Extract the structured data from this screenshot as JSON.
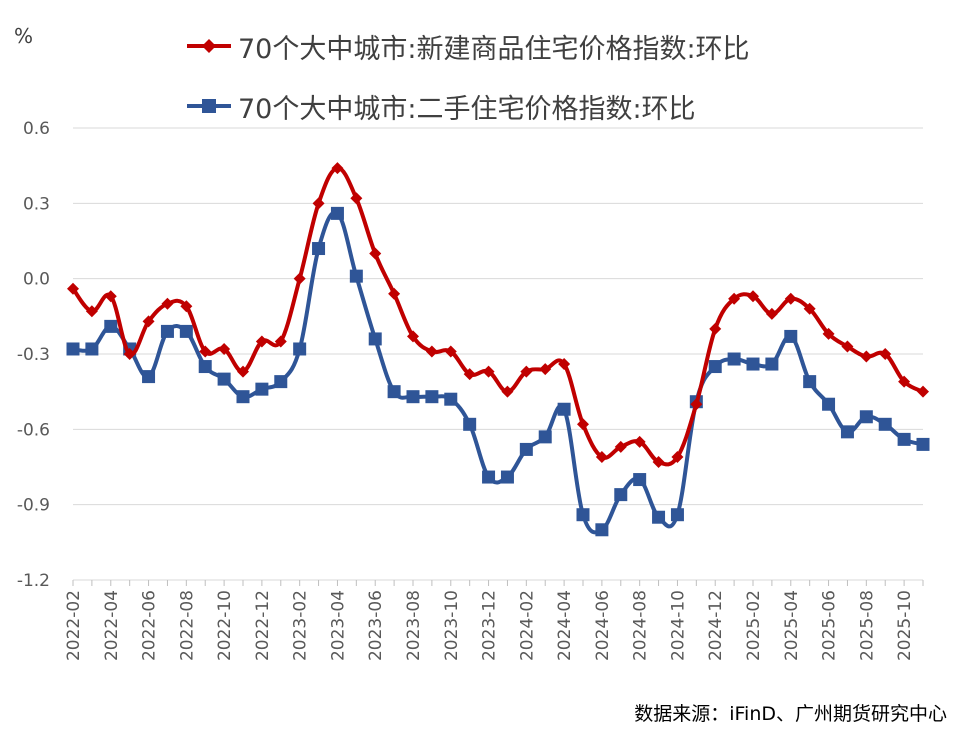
{
  "unit_label": "%",
  "source_text": "数据来源：iFinD、广州期货研究中心",
  "chart_data": {
    "type": "line",
    "title": "",
    "xlabel": "",
    "ylabel": "%",
    "ylim": [
      -1.2,
      0.6
    ],
    "yticks": [
      0.6,
      0.3,
      0.0,
      -0.3,
      -0.6,
      -0.9,
      -1.2
    ],
    "ytick_labels": [
      "0.6",
      "0.3",
      "0.0",
      "-0.3",
      "-0.6",
      "-0.9",
      "-1.2"
    ],
    "grid": true,
    "legend_position": "top",
    "x": [
      "2022-02",
      "2022-03",
      "2022-04",
      "2022-05",
      "2022-06",
      "2022-07",
      "2022-08",
      "2022-09",
      "2022-10",
      "2022-11",
      "2022-12",
      "2023-01",
      "2023-02",
      "2023-03",
      "2023-04",
      "2023-05",
      "2023-06",
      "2023-07",
      "2023-08",
      "2023-09",
      "2023-10",
      "2023-11",
      "2023-12",
      "2024-01",
      "2024-02",
      "2024-03",
      "2024-04",
      "2024-05",
      "2024-06",
      "2024-07",
      "2024-08",
      "2024-09",
      "2024-10",
      "2024-11",
      "2024-12",
      "2025-01",
      "2025-02",
      "2025-03",
      "2025-04",
      "2025-05",
      "2025-06",
      "2025-07",
      "2025-08",
      "2025-09",
      "2025-10",
      "2025-11"
    ],
    "xtick_labels": [
      "2022-02",
      "2022-04",
      "2022-06",
      "2022-08",
      "2022-10",
      "2022-12",
      "2023-02",
      "2023-04",
      "2023-06",
      "2023-08",
      "2023-10",
      "2023-12",
      "2024-02",
      "2024-04",
      "2024-06",
      "2024-08",
      "2024-10",
      "2024-12",
      "2025-02",
      "2025-04",
      "2025-06",
      "2025-08",
      "2025-10"
    ],
    "series": [
      {
        "name": "70个大中城市:新建商品住宅价格指数:环比",
        "color": "#C00000",
        "marker": "diamond",
        "values": [
          -0.04,
          -0.13,
          -0.07,
          -0.3,
          -0.17,
          -0.1,
          -0.11,
          -0.29,
          -0.28,
          -0.37,
          -0.25,
          -0.25,
          0.0,
          0.3,
          0.44,
          0.32,
          0.1,
          -0.06,
          -0.23,
          -0.29,
          -0.29,
          -0.38,
          -0.37,
          -0.45,
          -0.37,
          -0.36,
          -0.34,
          -0.58,
          -0.71,
          -0.67,
          -0.65,
          -0.73,
          -0.71,
          -0.5,
          -0.2,
          -0.08,
          -0.07,
          -0.14,
          -0.08,
          -0.12,
          -0.22,
          -0.27,
          -0.31,
          -0.3,
          -0.41,
          -0.45
        ]
      },
      {
        "name": "70个大中城市:二手住宅价格指数:环比",
        "color": "#2F5597",
        "marker": "square",
        "values": [
          -0.28,
          -0.28,
          -0.19,
          -0.28,
          -0.39,
          -0.21,
          -0.21,
          -0.35,
          -0.4,
          -0.47,
          -0.44,
          -0.41,
          -0.28,
          0.12,
          0.26,
          0.01,
          -0.24,
          -0.45,
          -0.47,
          -0.47,
          -0.48,
          -0.58,
          -0.79,
          -0.79,
          -0.68,
          -0.63,
          -0.52,
          -0.94,
          -1.0,
          -0.86,
          -0.8,
          -0.95,
          -0.94,
          -0.49,
          -0.35,
          -0.32,
          -0.34,
          -0.34,
          -0.23,
          -0.41,
          -0.5,
          -0.61,
          -0.55,
          -0.58,
          -0.64,
          -0.66
        ]
      }
    ]
  }
}
